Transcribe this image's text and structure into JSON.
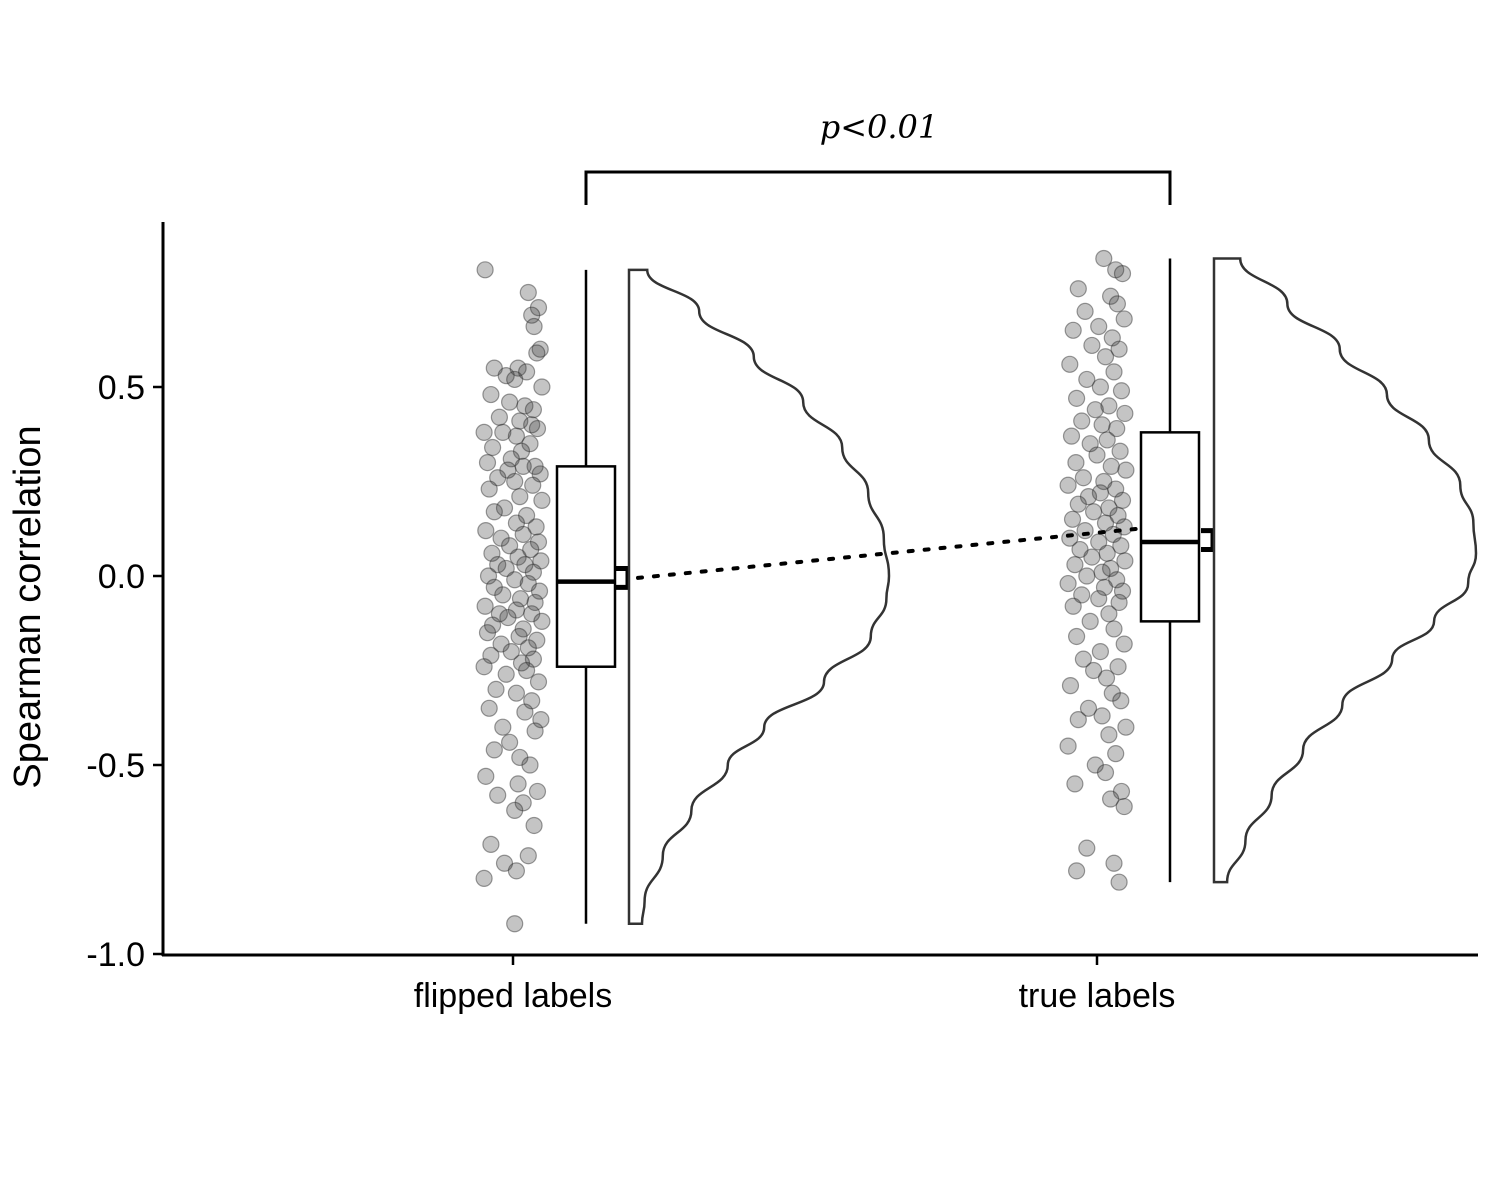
{
  "chart_data": {
    "type": "raincloud",
    "ylabel": "Spearman correlation",
    "xlabel": "",
    "ylim": [
      -1.0,
      0.95
    ],
    "yticks": [
      0.5,
      0.0,
      -0.5,
      -1.0
    ],
    "ytick_labels": [
      "0.5",
      "0.0",
      "-0.5",
      "-1.0"
    ],
    "categories": [
      "flipped labels",
      "true labels"
    ],
    "significance": {
      "label": "p<0.01",
      "between": [
        "flipped labels",
        "true labels"
      ]
    },
    "groups": [
      {
        "name": "flipped labels",
        "min": -0.92,
        "q1": -0.24,
        "median": -0.015,
        "q3": 0.29,
        "max": 0.81,
        "mean": -0.005,
        "mean_ci": [
          -0.03,
          0.02
        ],
        "density": [
          {
            "y": 0.81,
            "d": 0.07
          },
          {
            "y": 0.7,
            "d": 0.27
          },
          {
            "y": 0.58,
            "d": 0.48
          },
          {
            "y": 0.46,
            "d": 0.67
          },
          {
            "y": 0.34,
            "d": 0.82
          },
          {
            "y": 0.22,
            "d": 0.92
          },
          {
            "y": 0.1,
            "d": 0.98
          },
          {
            "y": 0.0,
            "d": 1.0
          },
          {
            "y": -0.06,
            "d": 0.99
          },
          {
            "y": -0.16,
            "d": 0.93
          },
          {
            "y": -0.28,
            "d": 0.75
          },
          {
            "y": -0.4,
            "d": 0.52
          },
          {
            "y": -0.5,
            "d": 0.38
          },
          {
            "y": -0.62,
            "d": 0.24
          },
          {
            "y": -0.74,
            "d": 0.13
          },
          {
            "y": -0.86,
            "d": 0.06
          },
          {
            "y": -0.92,
            "d": 0.05
          }
        ],
        "points": [
          0.81,
          0.75,
          0.71,
          0.69,
          0.66,
          0.6,
          0.59,
          0.55,
          0.55,
          0.54,
          0.53,
          0.52,
          0.5,
          0.48,
          0.46,
          0.45,
          0.44,
          0.42,
          0.41,
          0.4,
          0.39,
          0.38,
          0.38,
          0.37,
          0.35,
          0.34,
          0.33,
          0.31,
          0.3,
          0.29,
          0.29,
          0.28,
          0.27,
          0.26,
          0.25,
          0.24,
          0.23,
          0.21,
          0.2,
          0.18,
          0.17,
          0.16,
          0.14,
          0.13,
          0.12,
          0.11,
          0.1,
          0.09,
          0.08,
          0.07,
          0.06,
          0.05,
          0.04,
          0.03,
          0.03,
          0.02,
          0.01,
          0.0,
          -0.01,
          -0.02,
          -0.03,
          -0.04,
          -0.05,
          -0.06,
          -0.07,
          -0.08,
          -0.09,
          -0.1,
          -0.1,
          -0.11,
          -0.12,
          -0.13,
          -0.14,
          -0.15,
          -0.16,
          -0.17,
          -0.18,
          -0.19,
          -0.2,
          -0.21,
          -0.22,
          -0.23,
          -0.24,
          -0.25,
          -0.26,
          -0.28,
          -0.3,
          -0.31,
          -0.33,
          -0.35,
          -0.36,
          -0.38,
          -0.4,
          -0.41,
          -0.44,
          -0.46,
          -0.48,
          -0.5,
          -0.53,
          -0.55,
          -0.57,
          -0.58,
          -0.6,
          -0.62,
          -0.66,
          -0.71,
          -0.74,
          -0.76,
          -0.78,
          -0.8,
          -0.92
        ],
        "jitter": [
          -0.82,
          0.45,
          0.75,
          0.55,
          0.62,
          0.8,
          0.7,
          -0.55,
          0.15,
          0.4,
          -0.2,
          0.05,
          0.85,
          -0.65,
          -0.1,
          0.35,
          0.6,
          -0.4,
          0.2,
          0.55,
          0.72,
          -0.85,
          -0.3,
          0.1,
          0.5,
          -0.6,
          0.25,
          -0.05,
          -0.75,
          0.65,
          0.3,
          -0.15,
          0.8,
          -0.45,
          0.05,
          0.58,
          -0.7,
          0.2,
          0.85,
          -0.25,
          -0.55,
          0.4,
          0.1,
          0.68,
          -0.8,
          0.3,
          -0.35,
          0.75,
          -0.1,
          0.52,
          -0.62,
          0.15,
          0.82,
          -0.45,
          0.35,
          -0.2,
          0.6,
          -0.72,
          0.05,
          0.45,
          -0.55,
          0.78,
          -0.3,
          0.22,
          0.65,
          -0.82,
          0.1,
          -0.4,
          0.55,
          -0.15,
          0.85,
          -0.6,
          0.3,
          -0.75,
          0.18,
          0.7,
          -0.35,
          0.45,
          -0.05,
          -0.65,
          0.6,
          0.25,
          -0.85,
          0.4,
          -0.2,
          0.75,
          -0.5,
          0.1,
          0.55,
          -0.7,
          0.35,
          0.82,
          -0.3,
          0.65,
          -0.1,
          -0.55,
          0.2,
          0.5,
          -0.8,
          0.15,
          0.72,
          -0.45,
          0.3,
          0.05,
          0.62,
          -0.65,
          0.45,
          -0.25,
          0.1,
          -0.85,
          0.05
        ]
      },
      {
        "name": "true labels",
        "min": -0.81,
        "q1": -0.12,
        "median": 0.09,
        "q3": 0.38,
        "max": 0.84,
        "mean": 0.095,
        "mean_ci": [
          0.07,
          0.12
        ],
        "density": [
          {
            "y": 0.84,
            "d": 0.1
          },
          {
            "y": 0.72,
            "d": 0.28
          },
          {
            "y": 0.6,
            "d": 0.48
          },
          {
            "y": 0.48,
            "d": 0.66
          },
          {
            "y": 0.36,
            "d": 0.82
          },
          {
            "y": 0.24,
            "d": 0.94
          },
          {
            "y": 0.14,
            "d": 0.99
          },
          {
            "y": 0.06,
            "d": 1.0
          },
          {
            "y": -0.02,
            "d": 0.97
          },
          {
            "y": -0.12,
            "d": 0.84
          },
          {
            "y": -0.22,
            "d": 0.68
          },
          {
            "y": -0.34,
            "d": 0.49
          },
          {
            "y": -0.46,
            "d": 0.34
          },
          {
            "y": -0.58,
            "d": 0.22
          },
          {
            "y": -0.7,
            "d": 0.12
          },
          {
            "y": -0.81,
            "d": 0.05
          }
        ],
        "points": [
          0.84,
          0.81,
          0.8,
          0.76,
          0.74,
          0.72,
          0.7,
          0.68,
          0.66,
          0.65,
          0.63,
          0.61,
          0.6,
          0.58,
          0.56,
          0.54,
          0.52,
          0.5,
          0.49,
          0.47,
          0.45,
          0.44,
          0.43,
          0.41,
          0.4,
          0.39,
          0.37,
          0.36,
          0.35,
          0.33,
          0.32,
          0.3,
          0.29,
          0.28,
          0.26,
          0.25,
          0.24,
          0.23,
          0.22,
          0.21,
          0.2,
          0.19,
          0.18,
          0.17,
          0.16,
          0.15,
          0.14,
          0.13,
          0.12,
          0.11,
          0.1,
          0.09,
          0.08,
          0.07,
          0.06,
          0.05,
          0.04,
          0.03,
          0.02,
          0.01,
          0.0,
          -0.01,
          -0.02,
          -0.03,
          -0.04,
          -0.05,
          -0.06,
          -0.07,
          -0.08,
          -0.1,
          -0.12,
          -0.14,
          -0.16,
          -0.18,
          -0.2,
          -0.22,
          -0.24,
          -0.25,
          -0.27,
          -0.29,
          -0.31,
          -0.33,
          -0.35,
          -0.37,
          -0.38,
          -0.4,
          -0.42,
          -0.45,
          -0.47,
          -0.5,
          -0.52,
          -0.55,
          -0.57,
          -0.59,
          -0.61,
          -0.72,
          -0.76,
          -0.78,
          -0.81
        ],
        "jitter": [
          0.2,
          0.55,
          0.75,
          -0.55,
          0.4,
          0.6,
          -0.35,
          0.8,
          0.05,
          -0.7,
          0.45,
          -0.15,
          0.65,
          0.25,
          -0.8,
          0.5,
          -0.3,
          0.1,
          0.72,
          -0.6,
          0.35,
          -0.05,
          0.82,
          -0.45,
          0.15,
          0.58,
          -0.75,
          0.3,
          -0.2,
          0.68,
          0.0,
          -0.62,
          0.42,
          0.85,
          -0.4,
          0.2,
          -0.85,
          0.55,
          0.1,
          -0.25,
          0.75,
          -0.55,
          0.35,
          -0.1,
          0.62,
          -0.72,
          0.25,
          0.8,
          -0.35,
          0.48,
          -0.8,
          0.05,
          0.7,
          -0.5,
          0.3,
          -0.15,
          0.82,
          -0.65,
          0.4,
          0.15,
          -0.3,
          0.58,
          -0.85,
          0.22,
          0.75,
          -0.45,
          0.05,
          0.65,
          -0.7,
          0.35,
          -0.2,
          0.5,
          -0.6,
          0.8,
          0.1,
          -0.4,
          0.62,
          -0.1,
          0.28,
          -0.78,
          0.45,
          0.7,
          -0.25,
          0.15,
          -0.55,
          0.85,
          0.35,
          -0.85,
          0.55,
          -0.05,
          0.25,
          -0.65,
          0.72,
          0.4,
          0.8,
          -0.3,
          0.5,
          -0.6,
          0.65
        ]
      }
    ]
  }
}
